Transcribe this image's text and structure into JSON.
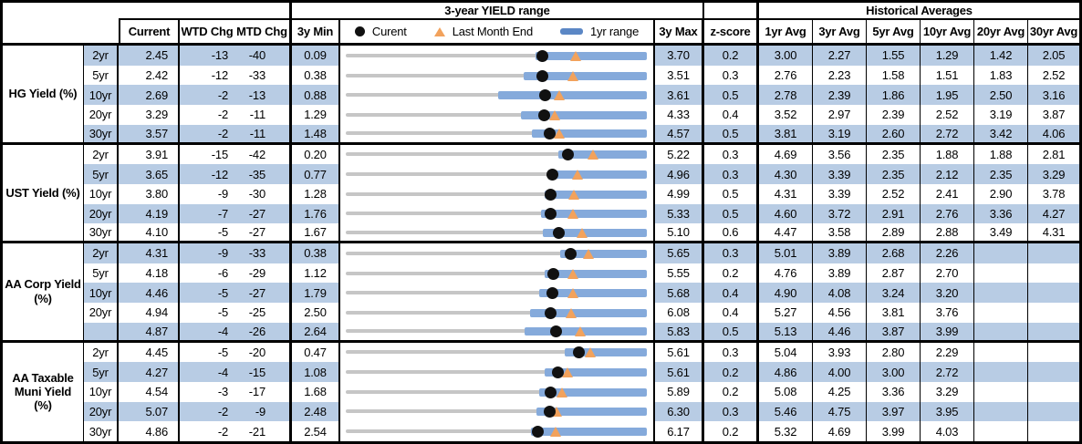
{
  "header": {
    "yield_range_title": "3-year YIELD range",
    "hist_avg_title": "Historical Averages",
    "current": "Current",
    "wtd_chg": "WTD Chg",
    "mtd_chg": "MTD Chg",
    "min_3y": "3y Min",
    "max_3y": "3y Max",
    "z_score": "z-score",
    "avg_headers": [
      "1yr Avg",
      "3yr Avg",
      "5yr Avg",
      "10yr Avg",
      "20yr Avg",
      "30yr Avg"
    ]
  },
  "legend": {
    "current": "Curent",
    "last_month_end": "Last Month End",
    "yr1_range": "1yr range"
  },
  "colors": {
    "row_shade": "#b8cce4",
    "bar_blue": "#85aadb",
    "legend_bar_blue": "#5b87c5",
    "track_gray": "#c6c6c6",
    "marker_orange": "#f2a25c",
    "marker_black": "#111111"
  },
  "chart_data": {
    "type": "table",
    "description": "Yields vs 3-year range bullet charts: gray track spans 3y Min to 3y Max, blue bar is 1yr range (estimated low), black dot is current, orange triangle is last month end.",
    "sections": [
      {
        "label_lines": [
          "HG Yield (%)"
        ],
        "rows": [
          {
            "tenor": "2yr",
            "current": "2.45",
            "wtd_chg": "-13",
            "mtd_chg": "-40",
            "min_3y": "0.09",
            "max_3y": "3.70",
            "z_score": "0.2",
            "avgs": [
              "3.00",
              "2.27",
              "1.55",
              "1.29",
              "1.42",
              "2.05"
            ],
            "last_month_end": 2.85,
            "yr1_low": 2.37,
            "yr1_high": 3.7
          },
          {
            "tenor": "5yr",
            "current": "2.42",
            "wtd_chg": "-12",
            "mtd_chg": "-33",
            "min_3y": "0.38",
            "max_3y": "3.51",
            "z_score": "0.3",
            "avgs": [
              "2.76",
              "2.23",
              "1.58",
              "1.51",
              "1.83",
              "2.52"
            ],
            "last_month_end": 2.75,
            "yr1_low": 2.23,
            "yr1_high": 3.51
          },
          {
            "tenor": "10yr",
            "current": "2.69",
            "wtd_chg": "-2",
            "mtd_chg": "-13",
            "min_3y": "0.88",
            "max_3y": "3.61",
            "z_score": "0.5",
            "avgs": [
              "2.78",
              "2.39",
              "1.86",
              "1.95",
              "2.50",
              "3.16"
            ],
            "last_month_end": 2.82,
            "yr1_low": 2.26,
            "yr1_high": 3.61
          },
          {
            "tenor": "20yr",
            "current": "3.29",
            "wtd_chg": "-2",
            "mtd_chg": "-11",
            "min_3y": "1.29",
            "max_3y": "4.33",
            "z_score": "0.4",
            "avgs": [
              "3.52",
              "2.97",
              "2.39",
              "2.52",
              "3.19",
              "3.87"
            ],
            "last_month_end": 3.4,
            "yr1_low": 3.06,
            "yr1_high": 4.33
          },
          {
            "tenor": "30yr",
            "current": "3.57",
            "wtd_chg": "-2",
            "mtd_chg": "-11",
            "min_3y": "1.48",
            "max_3y": "4.57",
            "z_score": "0.5",
            "avgs": [
              "3.81",
              "3.19",
              "2.60",
              "2.72",
              "3.42",
              "4.06"
            ],
            "last_month_end": 3.68,
            "yr1_low": 3.39,
            "yr1_high": 4.57
          }
        ]
      },
      {
        "label_lines": [
          "UST Yield (%)"
        ],
        "rows": [
          {
            "tenor": "2yr",
            "current": "3.91",
            "wtd_chg": "-15",
            "mtd_chg": "-42",
            "min_3y": "0.20",
            "max_3y": "5.22",
            "z_score": "0.3",
            "avgs": [
              "4.69",
              "3.56",
              "2.35",
              "1.88",
              "1.88",
              "2.81"
            ],
            "last_month_end": 4.33,
            "yr1_low": 3.75,
            "yr1_high": 5.22
          },
          {
            "tenor": "5yr",
            "current": "3.65",
            "wtd_chg": "-12",
            "mtd_chg": "-35",
            "min_3y": "0.77",
            "max_3y": "4.96",
            "z_score": "0.3",
            "avgs": [
              "4.30",
              "3.39",
              "2.35",
              "2.12",
              "2.35",
              "3.29"
            ],
            "last_month_end": 4.0,
            "yr1_low": 3.64,
            "yr1_high": 4.96
          },
          {
            "tenor": "10yr",
            "current": "3.80",
            "wtd_chg": "-9",
            "mtd_chg": "-30",
            "min_3y": "1.28",
            "max_3y": "4.99",
            "z_score": "0.5",
            "avgs": [
              "4.31",
              "3.39",
              "2.52",
              "2.41",
              "2.90",
              "3.78"
            ],
            "last_month_end": 4.1,
            "yr1_low": 3.73,
            "yr1_high": 4.99
          },
          {
            "tenor": "20yr",
            "current": "4.19",
            "wtd_chg": "-7",
            "mtd_chg": "-27",
            "min_3y": "1.76",
            "max_3y": "5.33",
            "z_score": "0.5",
            "avgs": [
              "4.60",
              "3.72",
              "2.91",
              "2.76",
              "3.36",
              "4.27"
            ],
            "last_month_end": 4.46,
            "yr1_low": 4.07,
            "yr1_high": 5.33
          },
          {
            "tenor": "30yr",
            "current": "4.10",
            "wtd_chg": "-5",
            "mtd_chg": "-27",
            "min_3y": "1.67",
            "max_3y": "5.10",
            "z_score": "0.6",
            "avgs": [
              "4.47",
              "3.58",
              "2.89",
              "2.88",
              "3.49",
              "4.31"
            ],
            "last_month_end": 4.37,
            "yr1_low": 3.91,
            "yr1_high": 5.1
          }
        ]
      },
      {
        "label_lines": [
          "AA Corp Yield",
          "(%)"
        ],
        "rows": [
          {
            "tenor": "2yr",
            "current": "4.31",
            "wtd_chg": "-9",
            "mtd_chg": "-33",
            "min_3y": "0.38",
            "max_3y": "5.65",
            "z_score": "0.3",
            "avgs": [
              "5.01",
              "3.89",
              "2.68",
              "2.26",
              "",
              ""
            ],
            "last_month_end": 4.64,
            "yr1_low": 4.14,
            "yr1_high": 5.65
          },
          {
            "tenor": "5yr",
            "current": "4.18",
            "wtd_chg": "-6",
            "mtd_chg": "-29",
            "min_3y": "1.12",
            "max_3y": "5.55",
            "z_score": "0.2",
            "avgs": [
              "4.76",
              "3.89",
              "2.87",
              "2.70",
              "",
              ""
            ],
            "last_month_end": 4.47,
            "yr1_low": 4.04,
            "yr1_high": 5.55
          },
          {
            "tenor": "10yr",
            "current": "4.46",
            "wtd_chg": "-5",
            "mtd_chg": "-27",
            "min_3y": "1.79",
            "max_3y": "5.68",
            "z_score": "0.4",
            "avgs": [
              "4.90",
              "4.08",
              "3.24",
              "3.20",
              "",
              ""
            ],
            "last_month_end": 4.73,
            "yr1_low": 4.29,
            "yr1_high": 5.68
          },
          {
            "tenor": "20yr",
            "current": "4.94",
            "wtd_chg": "-5",
            "mtd_chg": "-25",
            "min_3y": "2.50",
            "max_3y": "6.08",
            "z_score": "0.4",
            "avgs": [
              "5.27",
              "4.56",
              "3.81",
              "3.76",
              "",
              ""
            ],
            "last_month_end": 5.19,
            "yr1_low": 4.69,
            "yr1_high": 6.08
          },
          {
            "tenor": "",
            "current": "4.87",
            "wtd_chg": "-4",
            "mtd_chg": "-26",
            "min_3y": "2.64",
            "max_3y": "5.83",
            "z_score": "0.5",
            "avgs": [
              "5.13",
              "4.46",
              "3.87",
              "3.99",
              "",
              ""
            ],
            "last_month_end": 5.13,
            "yr1_low": 4.53,
            "yr1_high": 5.83
          }
        ]
      },
      {
        "label_lines": [
          "AA Taxable",
          "Muni Yield",
          "(%)"
        ],
        "rows": [
          {
            "tenor": "2yr",
            "current": "4.45",
            "wtd_chg": "-5",
            "mtd_chg": "-20",
            "min_3y": "0.47",
            "max_3y": "5.61",
            "z_score": "0.3",
            "avgs": [
              "5.04",
              "3.93",
              "2.80",
              "2.29",
              "",
              ""
            ],
            "last_month_end": 4.65,
            "yr1_low": 4.21,
            "yr1_high": 5.61
          },
          {
            "tenor": "5yr",
            "current": "4.27",
            "wtd_chg": "-4",
            "mtd_chg": "-15",
            "min_3y": "1.08",
            "max_3y": "5.61",
            "z_score": "0.2",
            "avgs": [
              "4.86",
              "4.00",
              "3.00",
              "2.72",
              "",
              ""
            ],
            "last_month_end": 4.42,
            "yr1_low": 4.07,
            "yr1_high": 5.61
          },
          {
            "tenor": "10yr",
            "current": "4.54",
            "wtd_chg": "-3",
            "mtd_chg": "-17",
            "min_3y": "1.68",
            "max_3y": "5.89",
            "z_score": "0.2",
            "avgs": [
              "5.08",
              "4.25",
              "3.36",
              "3.29",
              "",
              ""
            ],
            "last_month_end": 4.71,
            "yr1_low": 4.38,
            "yr1_high": 5.89
          },
          {
            "tenor": "20yr",
            "current": "5.07",
            "wtd_chg": "-2",
            "mtd_chg": "-9",
            "min_3y": "2.48",
            "max_3y": "6.30",
            "z_score": "0.3",
            "avgs": [
              "5.46",
              "4.75",
              "3.97",
              "3.95",
              "",
              ""
            ],
            "last_month_end": 5.16,
            "yr1_low": 4.9,
            "yr1_high": 6.3
          },
          {
            "tenor": "30yr",
            "current": "4.86",
            "wtd_chg": "-2",
            "mtd_chg": "-21",
            "min_3y": "2.54",
            "max_3y": "6.17",
            "z_score": "0.2",
            "avgs": [
              "5.32",
              "4.69",
              "3.99",
              "4.03",
              "",
              ""
            ],
            "last_month_end": 5.07,
            "yr1_low": 4.77,
            "yr1_high": 6.17
          }
        ]
      }
    ]
  }
}
